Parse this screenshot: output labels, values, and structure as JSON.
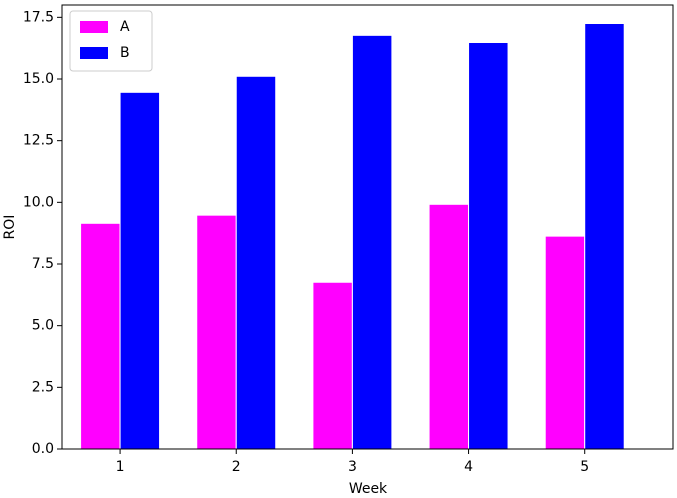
{
  "chart_data": {
    "type": "bar",
    "x_label": "Week",
    "y_label": "ROI",
    "x": [
      1,
      2,
      3,
      4,
      5
    ],
    "series": [
      {
        "name": "A",
        "color": "#ff00ff",
        "values": [
          9.15,
          9.48,
          6.76,
          9.92,
          8.63
        ]
      },
      {
        "name": "B",
        "color": "#0000ff",
        "values": [
          14.46,
          15.11,
          16.77,
          16.48,
          17.25
        ]
      }
    ],
    "xlim": [
      0.5,
      5.76
    ],
    "xticks": [
      1,
      2,
      3,
      4,
      5
    ],
    "ylim": [
      0,
      18.0
    ],
    "yticks": [
      {
        "value": 0,
        "label": "0.0"
      },
      {
        "value": 2.5,
        "label": "2.5"
      },
      {
        "value": 5,
        "label": "5.0"
      },
      {
        "value": 7.5,
        "label": "7.5"
      },
      {
        "value": 10,
        "label": "10.0"
      },
      {
        "value": 12.5,
        "label": "12.5"
      },
      {
        "value": 15,
        "label": "15.0"
      },
      {
        "value": 17.5,
        "label": "17.5"
      }
    ],
    "grid": false,
    "legend": "upper left"
  }
}
